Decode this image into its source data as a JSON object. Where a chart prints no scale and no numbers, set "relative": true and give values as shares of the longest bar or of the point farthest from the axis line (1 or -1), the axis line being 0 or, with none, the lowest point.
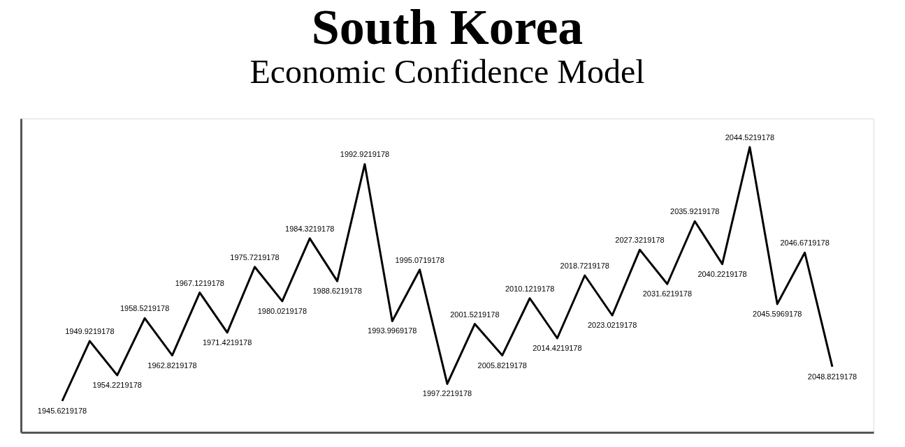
{
  "chart_data": {
    "type": "line",
    "title": "South Korea",
    "subtitle": "Economic Confidence Model",
    "relative": true,
    "categories": [
      null,
      null,
      null,
      null,
      null,
      null,
      null,
      null,
      null,
      null,
      null,
      null,
      null,
      null,
      null,
      null,
      null,
      null,
      null,
      null,
      null,
      null,
      null,
      null,
      null,
      null,
      null,
      null,
      null
    ],
    "series": [
      {
        "color": "#000000",
        "values": [
          0.11,
          0.32,
          0.2,
          0.4,
          0.27,
          0.49,
          0.35,
          0.58,
          0.46,
          0.68,
          0.53,
          0.94,
          0.39,
          0.57,
          0.17,
          0.38,
          0.27,
          0.47,
          0.33,
          0.55,
          0.41,
          0.64,
          0.52,
          0.74,
          0.59,
          1,
          0.45,
          0.63,
          0.23
        ]
      }
    ],
    "tick_labels": false,
    "grid": false,
    "line_style": "solid",
    "annotations": [
      "1945.6219178",
      "1949.9219178",
      "1954.2219178",
      "1958.5219178",
      "1962.8219178",
      "1967.1219178",
      "1971.4219178",
      "1975.7219178",
      "1980.0219178",
      "1984.3219178",
      "1988.6219178",
      "1992.9219178",
      "1993.9969178",
      "1995.0719178",
      "1997.2219178",
      "2001.5219178",
      "2005.8219178",
      "2010.1219178",
      "2014.4219178",
      "2018.7219178",
      "2023.0219178",
      "2027.3219178",
      "2031.6219178",
      "2035.9219178",
      "2040.2219178",
      "2044.5219178",
      "2045.5969178",
      "2046.6719178",
      "2048.8219178"
    ]
  }
}
